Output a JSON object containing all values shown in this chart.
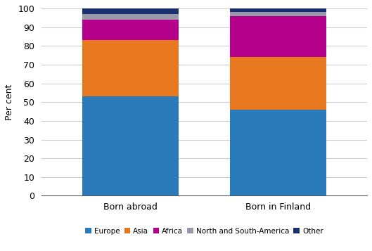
{
  "categories": [
    "Born abroad",
    "Born in Finland"
  ],
  "series": [
    {
      "label": "Europe",
      "values": [
        53,
        46
      ],
      "color": "#2b7bba"
    },
    {
      "label": "Asia",
      "values": [
        30,
        28
      ],
      "color": "#e87820"
    },
    {
      "label": "Africa",
      "values": [
        11,
        22
      ],
      "color": "#b5008c"
    },
    {
      "label": "North and South-America",
      "values": [
        3,
        2
      ],
      "color": "#9999aa"
    },
    {
      "label": "Other",
      "values": [
        3,
        2
      ],
      "color": "#1a2f6e"
    }
  ],
  "ylabel": "Per cent",
  "ylim": [
    0,
    100
  ],
  "yticks": [
    0,
    10,
    20,
    30,
    40,
    50,
    60,
    70,
    80,
    90,
    100
  ],
  "bar_width": 0.65,
  "figsize": [
    5.29,
    3.57
  ],
  "dpi": 100,
  "background_color": "#ffffff",
  "grid_color": "#cccccc",
  "legend_fontsize": 7.5,
  "axis_fontsize": 9,
  "tick_fontsize": 9
}
